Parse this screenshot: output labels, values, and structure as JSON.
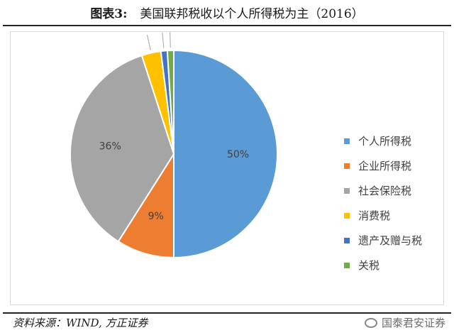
{
  "header": {
    "label": "图表3:",
    "title": "美国联邦税收以个人所得税为主（2016）"
  },
  "chart_data": {
    "type": "pie",
    "categories": [
      "个人所得税",
      "企业所得税",
      "社会保险税",
      "消费税",
      "遗产及赠与税",
      "关税"
    ],
    "values": [
      50,
      9,
      36,
      3,
      1,
      1
    ],
    "data_labels": [
      "50%",
      "9%",
      "36%",
      "3%",
      "1%",
      "1%"
    ],
    "colors": [
      "#5b9bd5",
      "#ed7d31",
      "#a5a5a5",
      "#ffc000",
      "#4472c4",
      "#70ad47"
    ],
    "legend_position": "right"
  },
  "footer": {
    "source": "资料来源：WIND, 方正证券",
    "watermark": "国泰君安证券"
  }
}
